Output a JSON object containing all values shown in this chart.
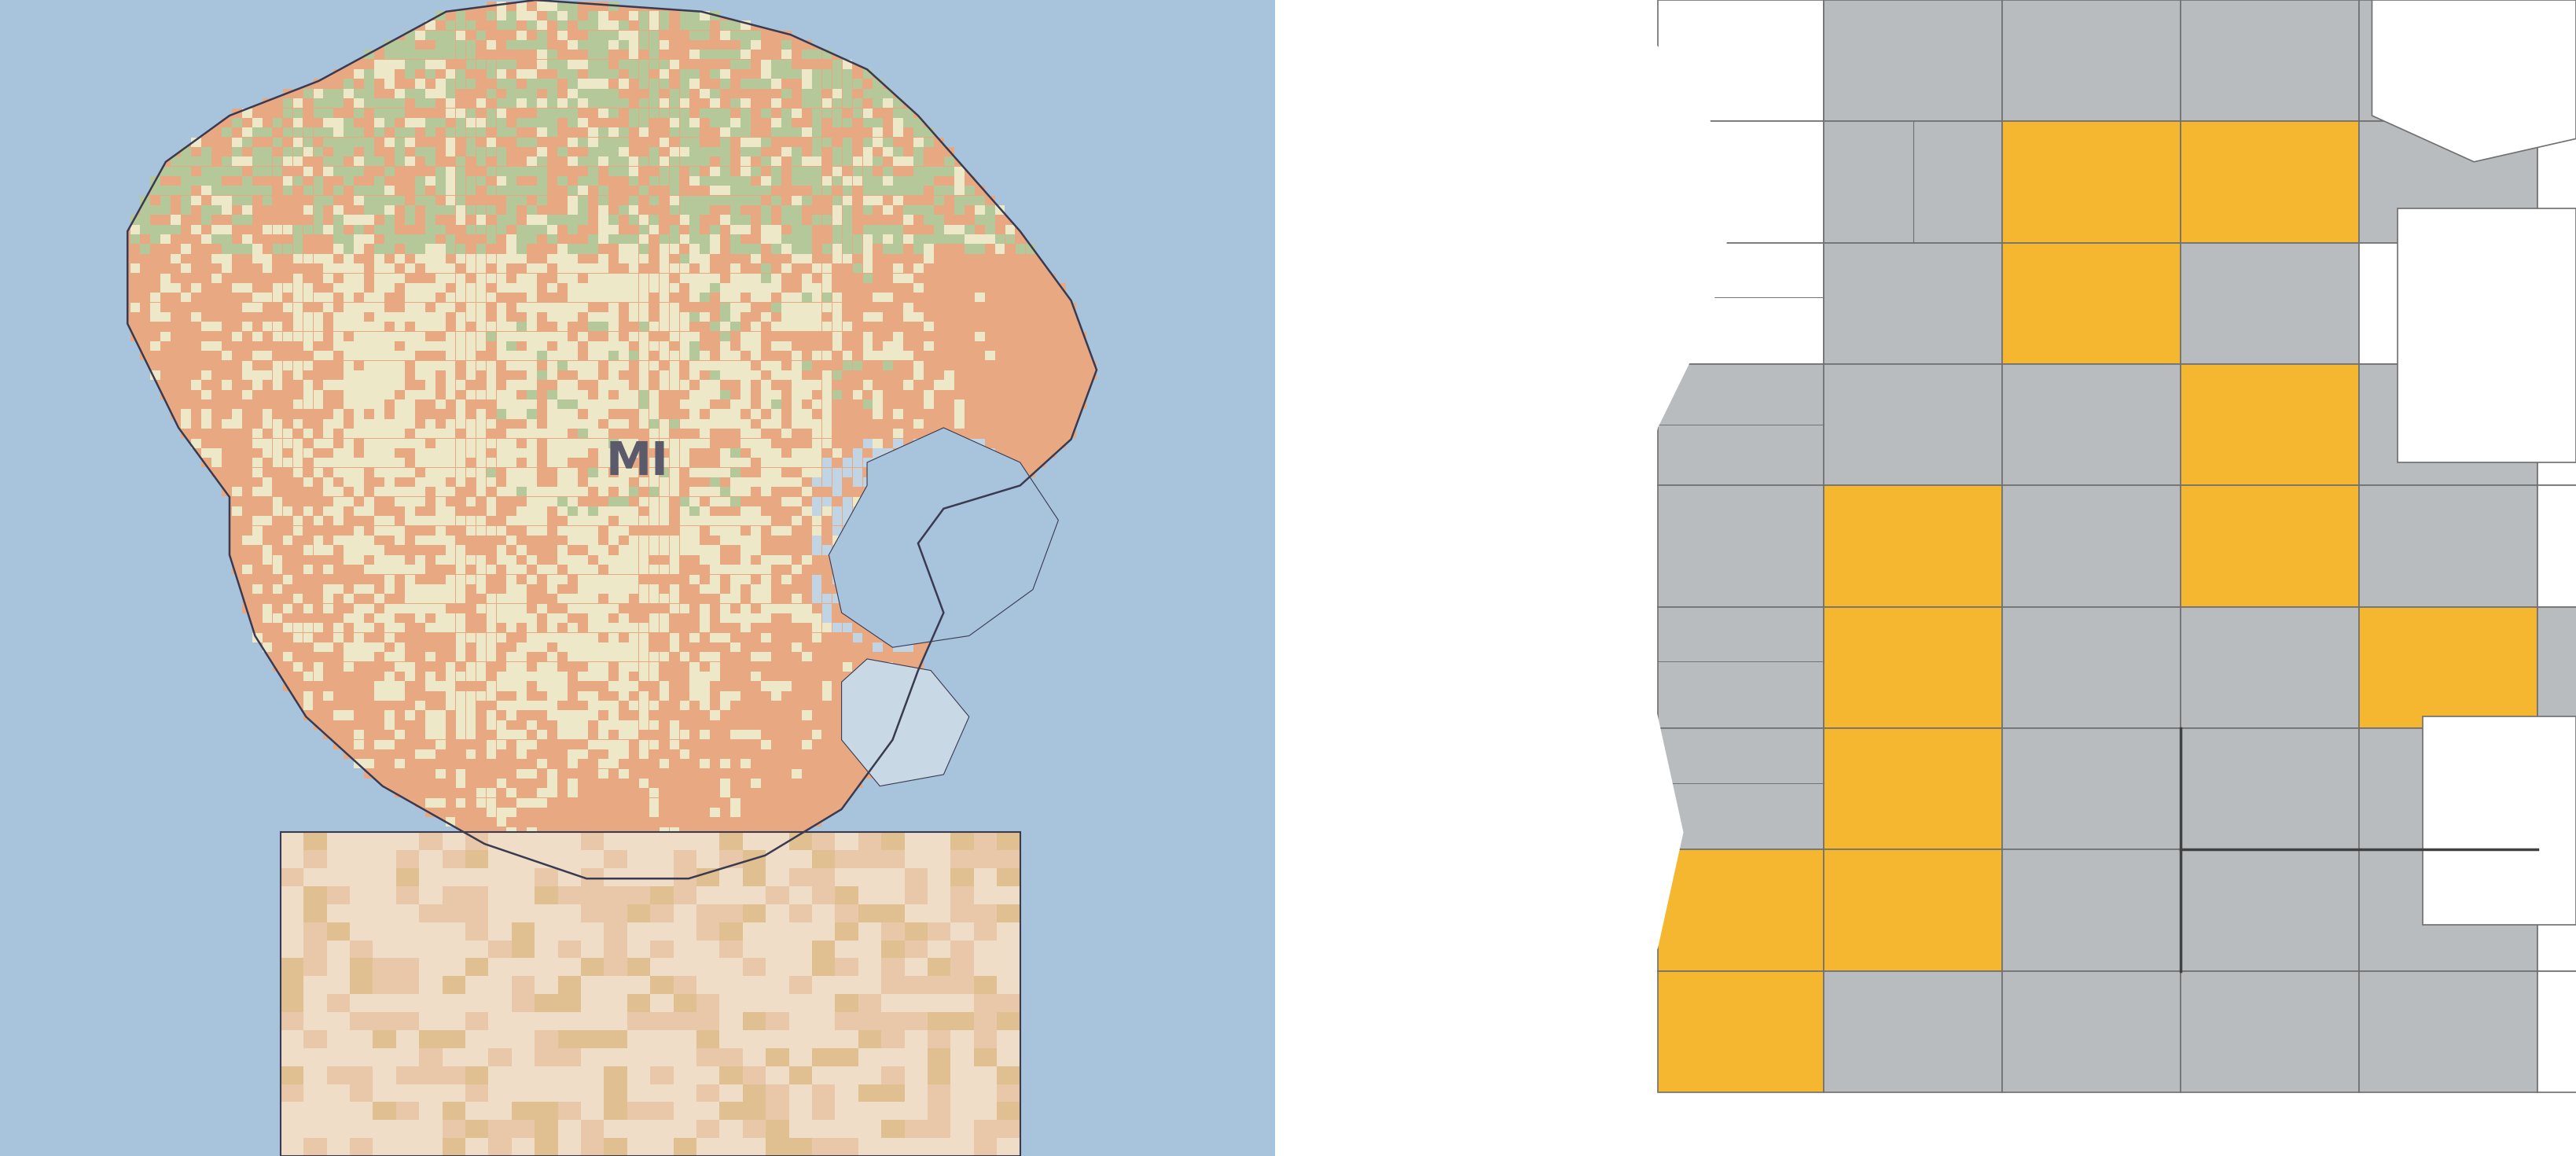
{
  "figure_width": 32.77,
  "figure_height": 14.7,
  "bg_color": "#ffffff",
  "left_panel": {
    "water_color": "#a8c4dc",
    "land_orange": "#e8a882",
    "land_cream": "#ede8c8",
    "land_green": "#b4c89a",
    "bay_blue": "#c0d4e4",
    "border_color": "#3a3a50",
    "state_label": "MI",
    "state_label_color": "#5a5a6a",
    "state_label_fontsize": 42
  },
  "right_panel": {
    "bg_color": "#ffffff",
    "county_gray": "#b8bcbf",
    "county_gold": "#f5b730",
    "county_white": "#ffffff",
    "border_color": "#707070",
    "border_width": 1.2
  }
}
